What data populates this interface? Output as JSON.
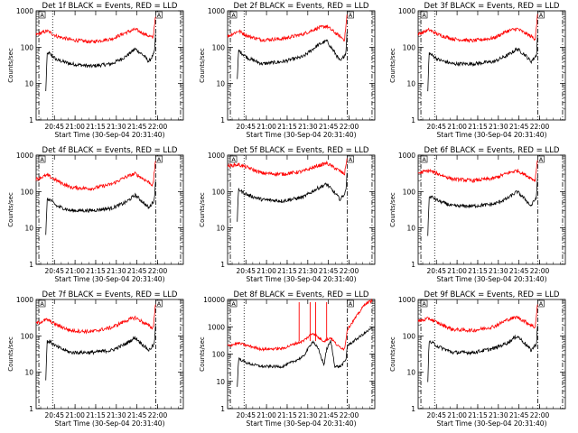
{
  "figure": {
    "xlabel": "Start Time (30-Sep-04 20:31:40)",
    "ylabel": "Counts/sec",
    "time_ticks": [
      "20:45",
      "21:00",
      "21:15",
      "21:30",
      "21:45",
      "22:00"
    ],
    "y_ticks": [
      "1",
      "10",
      "100",
      "1000",
      "10000"
    ],
    "flag_label": "A"
  },
  "chart_data": [
    {
      "type": "line",
      "title": "Det 1f BLACK = Events, RED = LLD",
      "ylog": true,
      "ylim": [
        1,
        1000
      ],
      "x_minutes": [
        0,
        12,
        24,
        36,
        48,
        60,
        72,
        84,
        96,
        120
      ],
      "series": [
        {
          "name": "BLACK",
          "color": "#000000",
          "anchors": [
            [
              7,
              6
            ],
            [
              8,
              60
            ],
            [
              9,
              70
            ],
            [
              15,
              45
            ],
            [
              25,
              35
            ],
            [
              40,
              30
            ],
            [
              55,
              35
            ],
            [
              65,
              55
            ],
            [
              72,
              90
            ],
            [
              78,
              60
            ],
            [
              82,
              40
            ],
            [
              86,
              70
            ],
            [
              87,
              300
            ]
          ]
        },
        {
          "name": "RED",
          "color": "#ff0000",
          "anchors": [
            [
              0,
              220
            ],
            [
              8,
              280
            ],
            [
              15,
              200
            ],
            [
              25,
              160
            ],
            [
              40,
              140
            ],
            [
              55,
              170
            ],
            [
              65,
              250
            ],
            [
              72,
              310
            ],
            [
              80,
              220
            ],
            [
              85,
              180
            ],
            [
              87,
              900
            ]
          ]
        }
      ],
      "dotted_x": 12,
      "dashdot_x": [
        2,
        87,
        105
      ]
    },
    {
      "type": "line",
      "title": "Det 2f BLACK = Events, RED = LLD",
      "ylog": true,
      "ylim": [
        1,
        1000
      ],
      "series": [
        {
          "name": "BLACK",
          "color": "#000000",
          "anchors": [
            [
              7,
              12
            ],
            [
              8,
              80
            ],
            [
              10,
              70
            ],
            [
              15,
              50
            ],
            [
              25,
              35
            ],
            [
              40,
              40
            ],
            [
              55,
              55
            ],
            [
              65,
              110
            ],
            [
              72,
              150
            ],
            [
              78,
              70
            ],
            [
              82,
              40
            ],
            [
              86,
              70
            ],
            [
              87,
              400
            ]
          ]
        },
        {
          "name": "RED",
          "color": "#ff0000",
          "anchors": [
            [
              0,
              200
            ],
            [
              8,
              280
            ],
            [
              15,
              200
            ],
            [
              25,
              160
            ],
            [
              40,
              170
            ],
            [
              55,
              230
            ],
            [
              65,
              330
            ],
            [
              72,
              380
            ],
            [
              80,
              220
            ],
            [
              85,
              160
            ],
            [
              87,
              900
            ]
          ]
        }
      ],
      "dotted_x": 12,
      "dashdot_x": [
        2,
        87,
        105
      ]
    },
    {
      "type": "line",
      "title": "Det 3f BLACK = Events, RED = LLD",
      "ylog": true,
      "ylim": [
        1,
        1000
      ],
      "series": [
        {
          "name": "BLACK",
          "color": "#000000",
          "anchors": [
            [
              7,
              6
            ],
            [
              8,
              70
            ],
            [
              10,
              60
            ],
            [
              15,
              45
            ],
            [
              25,
              35
            ],
            [
              40,
              35
            ],
            [
              55,
              40
            ],
            [
              65,
              60
            ],
            [
              72,
              90
            ],
            [
              78,
              60
            ],
            [
              82,
              40
            ],
            [
              86,
              60
            ],
            [
              87,
              300
            ]
          ]
        },
        {
          "name": "RED",
          "color": "#ff0000",
          "anchors": [
            [
              0,
              230
            ],
            [
              8,
              300
            ],
            [
              15,
              220
            ],
            [
              25,
              170
            ],
            [
              40,
              150
            ],
            [
              55,
              180
            ],
            [
              65,
              280
            ],
            [
              72,
              320
            ],
            [
              80,
              220
            ],
            [
              85,
              170
            ],
            [
              87,
              900
            ]
          ]
        }
      ],
      "dotted_x": 12,
      "dashdot_x": [
        2,
        87,
        105
      ]
    },
    {
      "type": "line",
      "title": "Det 4f BLACK = Events, RED = LLD",
      "ylog": true,
      "ylim": [
        1,
        1000
      ],
      "series": [
        {
          "name": "BLACK",
          "color": "#000000",
          "anchors": [
            [
              7,
              6
            ],
            [
              8,
              60
            ],
            [
              10,
              60
            ],
            [
              15,
              40
            ],
            [
              25,
              30
            ],
            [
              40,
              30
            ],
            [
              55,
              35
            ],
            [
              65,
              50
            ],
            [
              72,
              80
            ],
            [
              78,
              50
            ],
            [
              82,
              35
            ],
            [
              86,
              60
            ],
            [
              87,
              300
            ]
          ]
        },
        {
          "name": "RED",
          "color": "#ff0000",
          "anchors": [
            [
              0,
              220
            ],
            [
              8,
              280
            ],
            [
              15,
              200
            ],
            [
              25,
              130
            ],
            [
              40,
              120
            ],
            [
              55,
              160
            ],
            [
              65,
              250
            ],
            [
              72,
              310
            ],
            [
              80,
              200
            ],
            [
              85,
              150
            ],
            [
              87,
              900
            ]
          ]
        }
      ],
      "dotted_x": 12,
      "dashdot_x": [
        2,
        87,
        105
      ]
    },
    {
      "type": "line",
      "title": "Det 5f BLACK = Events, RED = LLD",
      "ylog": true,
      "ylim": [
        1,
        1000
      ],
      "series": [
        {
          "name": "BLACK",
          "color": "#000000",
          "anchors": [
            [
              7,
              15
            ],
            [
              8,
              120
            ],
            [
              10,
              100
            ],
            [
              15,
              80
            ],
            [
              25,
              60
            ],
            [
              40,
              55
            ],
            [
              55,
              70
            ],
            [
              65,
              120
            ],
            [
              72,
              160
            ],
            [
              78,
              90
            ],
            [
              82,
              60
            ],
            [
              86,
              100
            ],
            [
              87,
              500
            ]
          ]
        },
        {
          "name": "RED",
          "color": "#ff0000",
          "anchors": [
            [
              0,
              500
            ],
            [
              8,
              550
            ],
            [
              15,
              450
            ],
            [
              25,
              320
            ],
            [
              40,
              300
            ],
            [
              55,
              360
            ],
            [
              65,
              500
            ],
            [
              72,
              600
            ],
            [
              80,
              400
            ],
            [
              85,
              300
            ],
            [
              87,
              950
            ]
          ]
        }
      ],
      "dotted_x": 12,
      "dashdot_x": [
        2,
        87,
        105
      ]
    },
    {
      "type": "line",
      "title": "Det 6f BLACK = Events, RED = LLD",
      "ylog": true,
      "ylim": [
        1,
        1000
      ],
      "series": [
        {
          "name": "BLACK",
          "color": "#000000",
          "anchors": [
            [
              7,
              6
            ],
            [
              8,
              70
            ],
            [
              10,
              70
            ],
            [
              15,
              55
            ],
            [
              25,
              40
            ],
            [
              40,
              40
            ],
            [
              55,
              45
            ],
            [
              65,
              65
            ],
            [
              72,
              100
            ],
            [
              78,
              60
            ],
            [
              82,
              40
            ],
            [
              86,
              70
            ],
            [
              87,
              350
            ]
          ]
        },
        {
          "name": "RED",
          "color": "#ff0000",
          "anchors": [
            [
              0,
              320
            ],
            [
              8,
              380
            ],
            [
              15,
              300
            ],
            [
              25,
              220
            ],
            [
              40,
              200
            ],
            [
              55,
              230
            ],
            [
              65,
              320
            ],
            [
              72,
              380
            ],
            [
              80,
              260
            ],
            [
              85,
              200
            ],
            [
              87,
              950
            ]
          ]
        }
      ],
      "dotted_x": 12,
      "dashdot_x": [
        2,
        87,
        105
      ]
    },
    {
      "type": "line",
      "title": "Det 7f BLACK = Events, RED = LLD",
      "ylog": true,
      "ylim": [
        1,
        1000
      ],
      "series": [
        {
          "name": "BLACK",
          "color": "#000000",
          "anchors": [
            [
              7,
              6
            ],
            [
              8,
              70
            ],
            [
              10,
              70
            ],
            [
              15,
              50
            ],
            [
              25,
              35
            ],
            [
              40,
              35
            ],
            [
              55,
              40
            ],
            [
              65,
              60
            ],
            [
              72,
              90
            ],
            [
              78,
              55
            ],
            [
              82,
              40
            ],
            [
              86,
              60
            ],
            [
              87,
              300
            ]
          ]
        },
        {
          "name": "RED",
          "color": "#ff0000",
          "anchors": [
            [
              0,
              220
            ],
            [
              8,
              280
            ],
            [
              15,
              200
            ],
            [
              25,
              140
            ],
            [
              40,
              130
            ],
            [
              55,
              170
            ],
            [
              65,
              260
            ],
            [
              72,
              320
            ],
            [
              80,
              210
            ],
            [
              85,
              160
            ],
            [
              87,
              900
            ]
          ]
        }
      ],
      "dotted_x": 12,
      "dashdot_x": [
        2,
        87,
        105
      ]
    },
    {
      "type": "line",
      "title": "Det 8f BLACK = Events, RED = LLD",
      "ylog": true,
      "ylim": [
        1,
        10000
      ],
      "series": [
        {
          "name": "BLACK",
          "color": "#000000",
          "anchors": [
            [
              7,
              6
            ],
            [
              8,
              70
            ],
            [
              10,
              60
            ],
            [
              15,
              45
            ],
            [
              25,
              35
            ],
            [
              40,
              35
            ],
            [
              50,
              60
            ],
            [
              55,
              80
            ],
            [
              62,
              300
            ],
            [
              66,
              150
            ],
            [
              70,
              40
            ],
            [
              72,
              150
            ],
            [
              75,
              300
            ],
            [
              78,
              35
            ],
            [
              82,
              35
            ],
            [
              86,
              60
            ],
            [
              87,
              200
            ],
            [
              100,
              600
            ],
            [
              105,
              900
            ]
          ]
        },
        {
          "name": "RED",
          "color": "#ff0000",
          "anchors": [
            [
              0,
              200
            ],
            [
              8,
              250
            ],
            [
              15,
              200
            ],
            [
              25,
              150
            ],
            [
              40,
              160
            ],
            [
              50,
              250
            ],
            [
              55,
              300
            ],
            [
              62,
              600
            ],
            [
              66,
              400
            ],
            [
              70,
              300
            ],
            [
              75,
              400
            ],
            [
              80,
              200
            ],
            [
              85,
              150
            ],
            [
              87,
              800
            ],
            [
              95,
              3000
            ],
            [
              100,
              7000
            ],
            [
              105,
              9000
            ]
          ]
        }
      ],
      "spikes": [
        [
          52,
          8000
        ],
        [
          60,
          8000
        ],
        [
          64,
          8000
        ],
        [
          72,
          8000
        ]
      ],
      "dotted_x": 12,
      "dashdot_x": [
        2,
        87,
        105
      ]
    },
    {
      "type": "line",
      "title": "Det 9f BLACK = Events, RED = LLD",
      "ylog": true,
      "ylim": [
        1,
        1000
      ],
      "series": [
        {
          "name": "BLACK",
          "color": "#000000",
          "anchors": [
            [
              7,
              6
            ],
            [
              8,
              70
            ],
            [
              10,
              65
            ],
            [
              15,
              50
            ],
            [
              25,
              35
            ],
            [
              40,
              35
            ],
            [
              55,
              45
            ],
            [
              65,
              65
            ],
            [
              72,
              100
            ],
            [
              78,
              60
            ],
            [
              82,
              40
            ],
            [
              86,
              60
            ],
            [
              87,
              300
            ]
          ]
        },
        {
          "name": "RED",
          "color": "#ff0000",
          "anchors": [
            [
              0,
              250
            ],
            [
              8,
              300
            ],
            [
              15,
              220
            ],
            [
              25,
              150
            ],
            [
              40,
              140
            ],
            [
              55,
              180
            ],
            [
              65,
              280
            ],
            [
              72,
              330
            ],
            [
              80,
              220
            ],
            [
              85,
              170
            ],
            [
              87,
              900
            ]
          ]
        }
      ],
      "dotted_x": 12,
      "dashdot_x": [
        2,
        87,
        105
      ]
    }
  ]
}
